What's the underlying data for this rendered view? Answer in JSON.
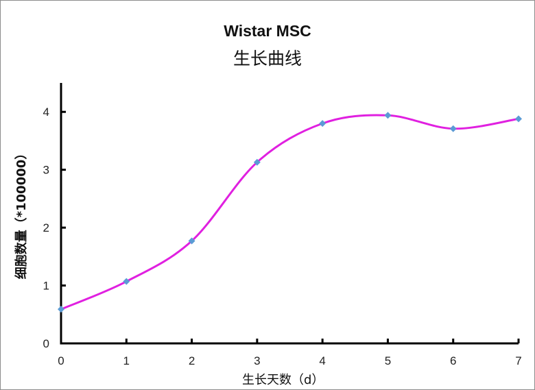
{
  "chart_data": {
    "type": "line",
    "title": "Wistar MSC",
    "subtitle": "生长曲线",
    "xlabel": "生长天数（d）",
    "ylabel": "细胞数量（*100000）",
    "x": [
      0,
      1,
      2,
      3,
      4,
      5,
      6,
      7
    ],
    "series": [
      {
        "name": "Wistar MSC",
        "values": [
          0.59,
          1.07,
          1.77,
          3.13,
          3.8,
          3.94,
          3.71,
          3.88
        ],
        "line_color": "#E020E0",
        "marker": "diamond",
        "marker_color": "#5B9BD5",
        "smooth": true
      }
    ],
    "xlim": [
      0,
      7
    ],
    "ylim": [
      0,
      4.5
    ],
    "xticks": [
      "0",
      "1",
      "2",
      "3",
      "4",
      "5",
      "6",
      "7"
    ],
    "yticks": [
      "0",
      "1",
      "2",
      "3",
      "4"
    ],
    "grid": false,
    "legend": "none"
  }
}
